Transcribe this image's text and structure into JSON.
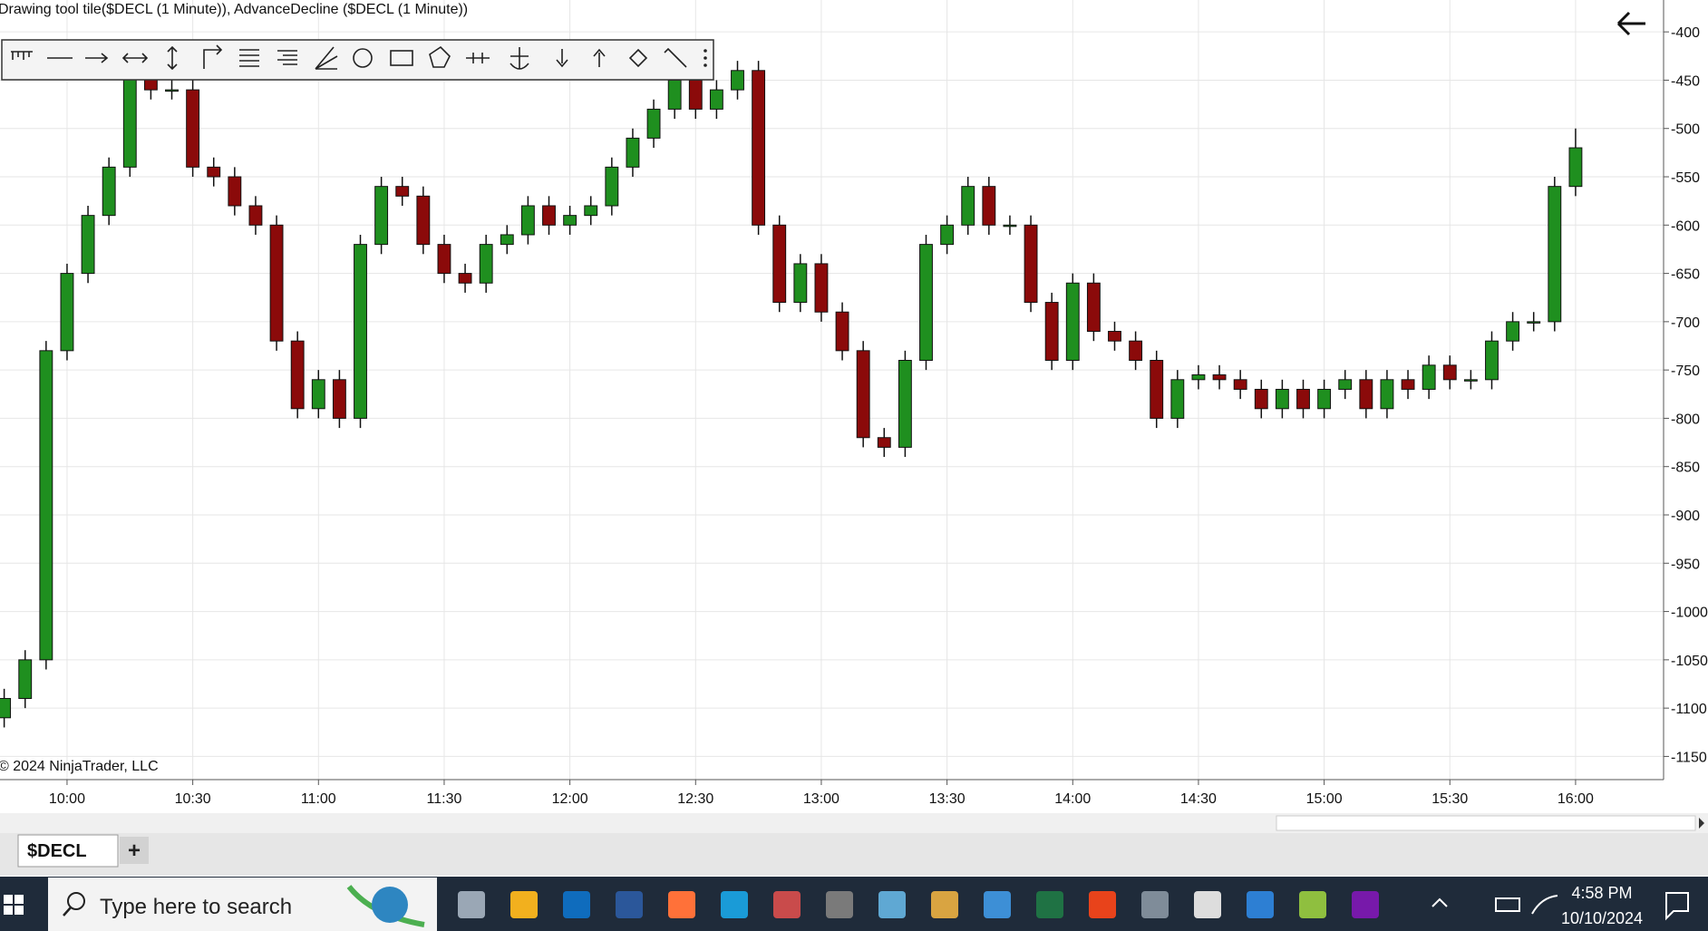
{
  "chart_data": {
    "type": "candlestick",
    "title": "Drawing tool tile($DECL (1 Minute)), AdvanceDecline ($DECL (1 Minute))",
    "x": [
      585,
      590,
      595,
      600,
      605,
      610,
      615,
      620,
      625,
      630,
      635,
      640,
      645,
      650,
      655,
      660,
      665,
      670,
      675,
      680,
      685,
      690,
      695,
      700,
      705,
      710,
      715,
      720,
      725,
      730,
      735,
      740,
      745,
      750,
      755,
      760,
      765,
      770,
      775,
      780,
      785,
      790,
      795,
      800,
      805,
      810,
      815,
      820,
      825,
      830,
      835,
      840,
      845,
      850,
      855,
      860,
      865,
      870,
      875,
      880,
      885,
      890,
      895,
      900,
      905,
      910,
      915,
      920,
      925,
      930,
      935,
      940,
      945,
      950,
      955,
      960
    ],
    "open": [
      -1110,
      -1090,
      -1050,
      -730,
      -650,
      -590,
      -540,
      -440,
      -460,
      -460,
      -540,
      -550,
      -580,
      -600,
      -720,
      -790,
      -760,
      -800,
      -620,
      -560,
      -570,
      -620,
      -650,
      -660,
      -620,
      -610,
      -580,
      -600,
      -590,
      -580,
      -540,
      -510,
      -480,
      -450,
      -480,
      -460,
      -440,
      -600,
      -680,
      -640,
      -690,
      -730,
      -820,
      -830,
      -740,
      -620,
      -600,
      -560,
      -600,
      -600,
      -680,
      -740,
      -660,
      -710,
      -720,
      -740,
      -800,
      -760,
      -755,
      -760,
      -770,
      -790,
      -770,
      -790,
      -770,
      -760,
      -790,
      -760,
      -770,
      -745,
      -760,
      -760,
      -720,
      -700,
      -700,
      -560
    ],
    "high": [
      -1080,
      -1040,
      -720,
      -640,
      -580,
      -530,
      -430,
      -430,
      -450,
      -450,
      -530,
      -540,
      -570,
      -590,
      -710,
      -750,
      -750,
      -610,
      -550,
      -550,
      -560,
      -610,
      -640,
      -610,
      -600,
      -570,
      -570,
      -580,
      -570,
      -530,
      -500,
      -470,
      -440,
      -440,
      -450,
      -430,
      -430,
      -590,
      -630,
      -630,
      -680,
      -720,
      -810,
      -730,
      -610,
      -590,
      -550,
      -550,
      -590,
      -590,
      -670,
      -650,
      -650,
      -700,
      -710,
      -730,
      -750,
      -745,
      -745,
      -750,
      -760,
      -760,
      -760,
      -760,
      -750,
      -750,
      -750,
      -750,
      -735,
      -735,
      -750,
      -710,
      -690,
      -690,
      -550,
      -500
    ],
    "low": [
      -1120,
      -1100,
      -1060,
      -740,
      -660,
      -600,
      -550,
      -470,
      -470,
      -550,
      -560,
      -590,
      -610,
      -730,
      -800,
      -800,
      -810,
      -810,
      -630,
      -580,
      -630,
      -660,
      -670,
      -670,
      -630,
      -620,
      -610,
      -610,
      -600,
      -590,
      -550,
      -520,
      -490,
      -490,
      -490,
      -470,
      -610,
      -690,
      -690,
      -700,
      -740,
      -830,
      -840,
      -840,
      -750,
      -630,
      -610,
      -610,
      -610,
      -690,
      -750,
      -750,
      -720,
      -730,
      -750,
      -810,
      -810,
      -770,
      -770,
      -780,
      -800,
      -800,
      -800,
      -800,
      -780,
      -800,
      -800,
      -780,
      -780,
      -770,
      -770,
      -770,
      -730,
      -710,
      -710,
      -570
    ],
    "close": [
      -1090,
      -1050,
      -730,
      -650,
      -590,
      -540,
      -440,
      -460,
      -460,
      -540,
      -550,
      -580,
      -600,
      -720,
      -790,
      -760,
      -800,
      -620,
      -560,
      -570,
      -620,
      -650,
      -660,
      -620,
      -610,
      -580,
      -600,
      -590,
      -580,
      -540,
      -510,
      -480,
      -450,
      -480,
      -460,
      -440,
      -600,
      -680,
      -640,
      -690,
      -730,
      -820,
      -830,
      -740,
      -620,
      -600,
      -560,
      -600,
      -600,
      -680,
      -740,
      -660,
      -710,
      -720,
      -740,
      -800,
      -760,
      -755,
      -760,
      -770,
      -790,
      -770,
      -790,
      -770,
      -760,
      -790,
      -760,
      -770,
      -745,
      -760,
      -760,
      -720,
      -700,
      -700,
      -560,
      -520
    ],
    "up_color": "#1f8f1f",
    "down_color": "#8b0a0a",
    "xlim": [
      584,
      981
    ],
    "ylim": [
      -1174,
      -367
    ],
    "xticks": [
      {
        "value": 600,
        "label": "10:00"
      },
      {
        "value": 630,
        "label": "10:30"
      },
      {
        "value": 660,
        "label": "11:00"
      },
      {
        "value": 690,
        "label": "11:30"
      },
      {
        "value": 720,
        "label": "12:00"
      },
      {
        "value": 750,
        "label": "12:30"
      },
      {
        "value": 780,
        "label": "13:00"
      },
      {
        "value": 810,
        "label": "13:30"
      },
      {
        "value": 840,
        "label": "14:00"
      },
      {
        "value": 870,
        "label": "14:30"
      },
      {
        "value": 900,
        "label": "15:00"
      },
      {
        "value": 930,
        "label": "15:30"
      },
      {
        "value": 960,
        "label": "16:00"
      }
    ],
    "yticks": [
      -400,
      -450,
      -500,
      -550,
      -600,
      -650,
      -700,
      -750,
      -800,
      -850,
      -900,
      -950,
      -1000,
      -1050,
      -1100,
      -1150
    ],
    "grid": true,
    "copyright": "© 2024 NinjaTrader, LLC"
  },
  "tabs": {
    "active": "$DECL",
    "add": "+"
  },
  "taskbar": {
    "search": "Type here to search",
    "time": "4:58 PM",
    "date": "10/10/2024"
  }
}
